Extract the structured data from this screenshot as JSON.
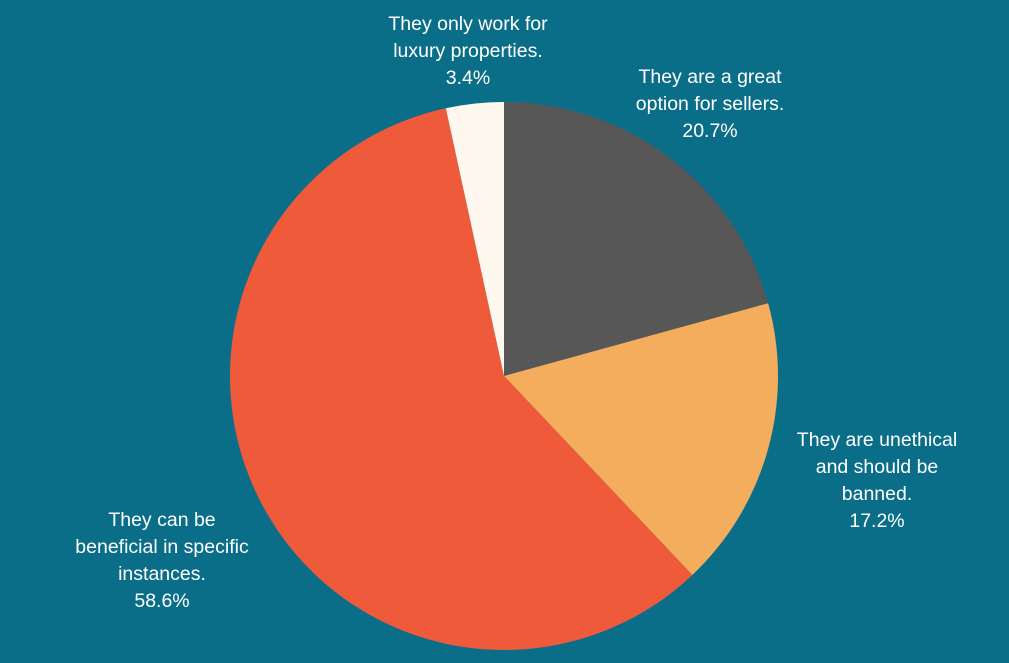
{
  "chart_data": {
    "type": "pie",
    "start_angle_deg": 0,
    "direction": "clockwise",
    "slices": [
      {
        "label_lines": [
          "They are a great",
          "option for sellers."
        ],
        "value": 20.7,
        "value_text": "20.7%",
        "color": "#575757"
      },
      {
        "label_lines": [
          "They are unethical",
          "and should be",
          "banned."
        ],
        "value": 17.2,
        "value_text": "17.2%",
        "color": "#f3ad5c"
      },
      {
        "label_lines": [
          "They can be",
          "beneficial in specific",
          "instances."
        ],
        "value": 58.6,
        "value_text": "58.6%",
        "color": "#ee5a3a"
      },
      {
        "label_lines": [
          "They only work for",
          "luxury properties."
        ],
        "value": 3.4,
        "value_text": "3.4%",
        "color": "#fff8ee"
      }
    ]
  },
  "colors": {
    "background": "#0b6e89",
    "label_text": "#ffffff"
  }
}
